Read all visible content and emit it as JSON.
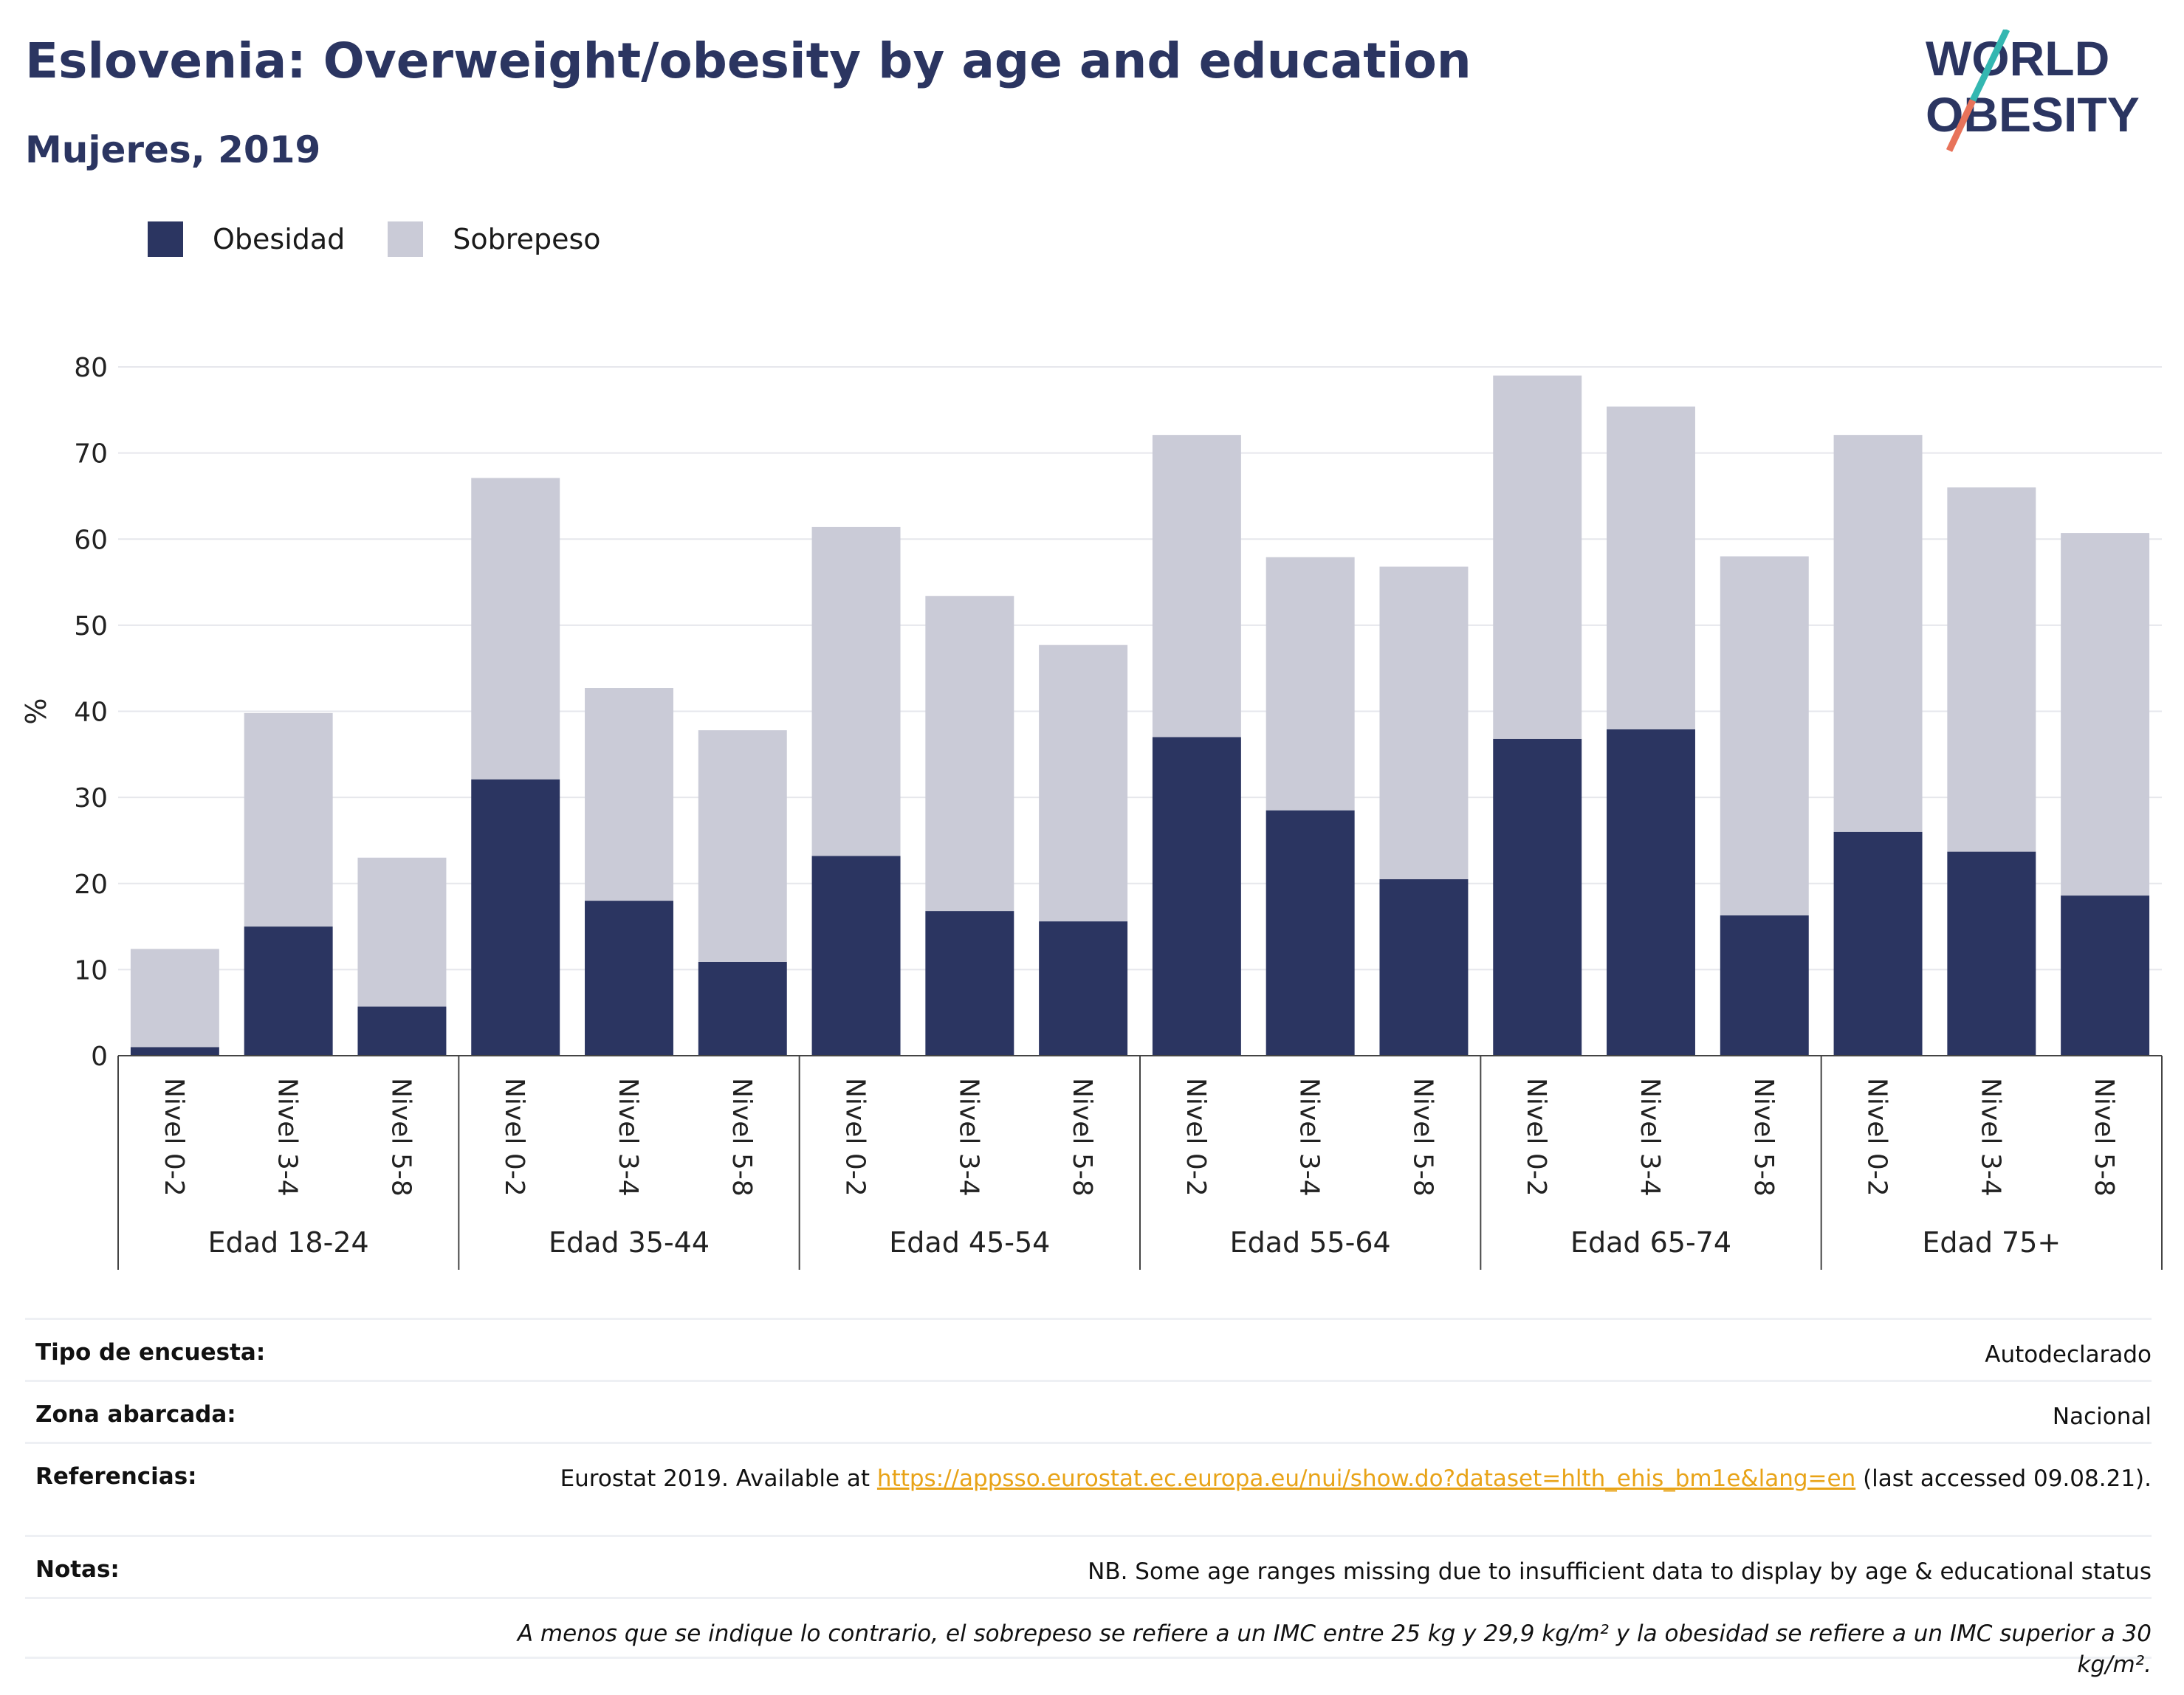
{
  "header": {
    "title": "Eslovenia: Overweight/obesity by age and education",
    "subtitle": "Mujeres, 2019"
  },
  "logo": {
    "line1": "WORLD",
    "line2": "OBESITY"
  },
  "colors": {
    "obesidad": "#2b3561",
    "sobrepeso": "#cacbd7",
    "accent": "#e8a317",
    "logo_teal": "#34b7b1",
    "logo_coral": "#e8735a"
  },
  "chart_data": {
    "type": "bar",
    "stacked": true,
    "ylabel": "%",
    "ylim": [
      0,
      80
    ],
    "yticks": [
      0,
      10,
      20,
      30,
      40,
      50,
      60,
      70,
      80
    ],
    "grid": true,
    "legend_position": "top-left",
    "groups": [
      "Edad 18-24",
      "Edad 35-44",
      "Edad 45-54",
      "Edad 55-64",
      "Edad 65-74",
      "Edad 75+"
    ],
    "subcategories": [
      "Nivel 0-2",
      "Nivel 3-4",
      "Nivel 5-8"
    ],
    "series": [
      {
        "name": "Obesidad",
        "values": [
          1.0,
          15.0,
          5.7,
          32.1,
          18.0,
          10.9,
          23.2,
          16.8,
          15.6,
          37.0,
          28.5,
          20.5,
          36.8,
          37.9,
          16.3,
          26.0,
          23.7,
          18.6
        ]
      },
      {
        "name": "Sobrepeso",
        "values": [
          11.4,
          24.8,
          17.3,
          35.0,
          24.7,
          26.9,
          38.2,
          36.6,
          32.1,
          35.1,
          29.4,
          36.3,
          42.2,
          37.5,
          41.7,
          46.1,
          42.3,
          42.1
        ]
      }
    ]
  },
  "meta": {
    "survey_type_label": "Tipo de encuesta:",
    "survey_type_value": "Autodeclarado",
    "area_label": "Zona abarcada:",
    "area_value": "Nacional",
    "references_label": "Referencias:",
    "references_prefix": "Eurostat 2019. Available at ",
    "references_link": "https://appsso.eurostat.ec.europa.eu/nui/show.do?dataset=hlth_ehis_bm1e&lang=en",
    "references_suffix": " (last accessed 09.08.21).",
    "notes_label": "Notas:",
    "notes_value": "NB. Some age ranges missing due to insufficient data to display by age & educational status",
    "footnote": "A menos que se indique lo contrario, el sobrepeso se refiere a un IMC entre 25 kg y 29,9 kg/m² y la obesidad se refiere a un IMC superior a 30 kg/m²."
  }
}
